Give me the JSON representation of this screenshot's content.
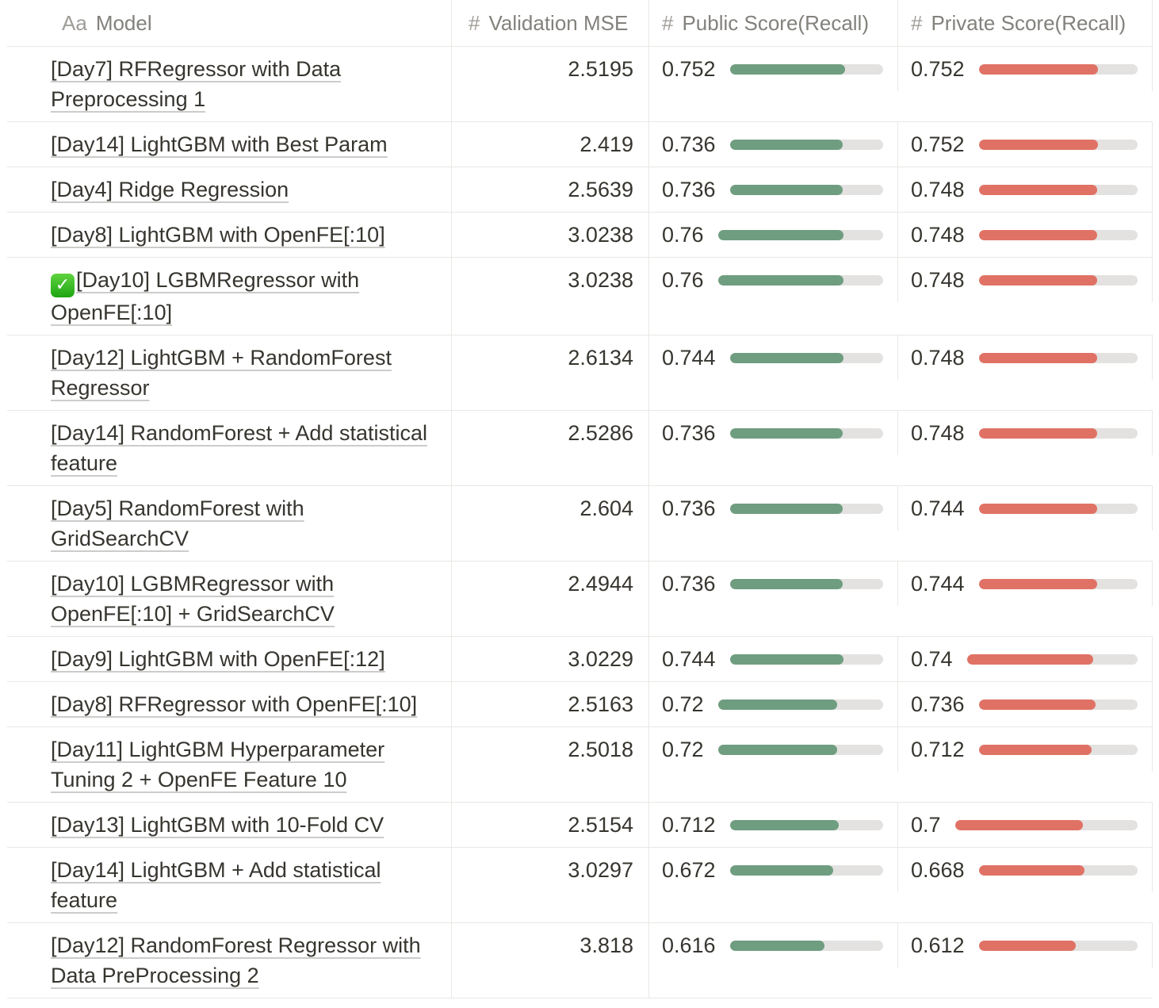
{
  "table": {
    "columns": [
      {
        "icon": "Aa",
        "icon_name": "text-property-icon",
        "label": "Model"
      },
      {
        "icon": "#",
        "icon_name": "number-property-icon",
        "label": "Validation MSE"
      },
      {
        "icon": "#",
        "icon_name": "number-property-icon",
        "label": "Public Score(Recall)"
      },
      {
        "icon": "#",
        "icon_name": "number-property-icon",
        "label": "Private Score(Recall)"
      }
    ],
    "check_icon": "✓",
    "colors": {
      "public_bar": "#6f9d80",
      "private_bar": "#e07265",
      "bar_track": "#e3e2e0",
      "check_gradient_top": "#5fd33f",
      "check_gradient_bottom": "#1fa512"
    },
    "rows": [
      {
        "model": "[Day7] RFRegressor with Data Preprocessing 1",
        "checked": false,
        "mse": 2.5195,
        "public": 0.752,
        "private": 0.752
      },
      {
        "model": "[Day14] LightGBM with Best Param",
        "checked": false,
        "mse": 2.419,
        "public": 0.736,
        "private": 0.752
      },
      {
        "model": "[Day4] Ridge Regression",
        "checked": false,
        "mse": 2.5639,
        "public": 0.736,
        "private": 0.748
      },
      {
        "model": "[Day8] LightGBM with OpenFE[:10]",
        "checked": false,
        "mse": 3.0238,
        "public": 0.76,
        "private": 0.748
      },
      {
        "model": "[Day10] LGBMRegressor with OpenFE[:10]",
        "checked": true,
        "mse": 3.0238,
        "public": 0.76,
        "private": 0.748
      },
      {
        "model": "[Day12] LightGBM + RandomForest Regressor",
        "checked": false,
        "mse": 2.6134,
        "public": 0.744,
        "private": 0.748
      },
      {
        "model": "[Day14] RandomForest + Add statistical feature",
        "checked": false,
        "mse": 2.5286,
        "public": 0.736,
        "private": 0.748
      },
      {
        "model": "[Day5] RandomForest with GridSearchCV",
        "checked": false,
        "mse": 2.604,
        "public": 0.736,
        "private": 0.744
      },
      {
        "model": "[Day10] LGBMRegressor with OpenFE[:10] + GridSearchCV",
        "checked": false,
        "mse": 2.4944,
        "public": 0.736,
        "private": 0.744
      },
      {
        "model": "[Day9] LightGBM with OpenFE[:12]",
        "checked": false,
        "mse": 3.0229,
        "public": 0.744,
        "private": 0.74
      },
      {
        "model": "[Day8] RFRegressor with OpenFE[:10]",
        "checked": false,
        "mse": 2.5163,
        "public": 0.72,
        "private": 0.736
      },
      {
        "model": "[Day11] LightGBM Hyperparameter Tuning 2 + OpenFE Feature 10",
        "checked": false,
        "mse": 2.5018,
        "public": 0.72,
        "private": 0.712
      },
      {
        "model": "[Day13] LightGBM with 10-Fold CV",
        "checked": false,
        "mse": 2.5154,
        "public": 0.712,
        "private": 0.7
      },
      {
        "model": "[Day14] LightGBM + Add statistical feature",
        "checked": false,
        "mse": 3.0297,
        "public": 0.672,
        "private": 0.668
      },
      {
        "model": "[Day12] RandomForest Regressor with Data PreProcessing 2",
        "checked": false,
        "mse": 3.818,
        "public": 0.616,
        "private": 0.612
      }
    ]
  }
}
